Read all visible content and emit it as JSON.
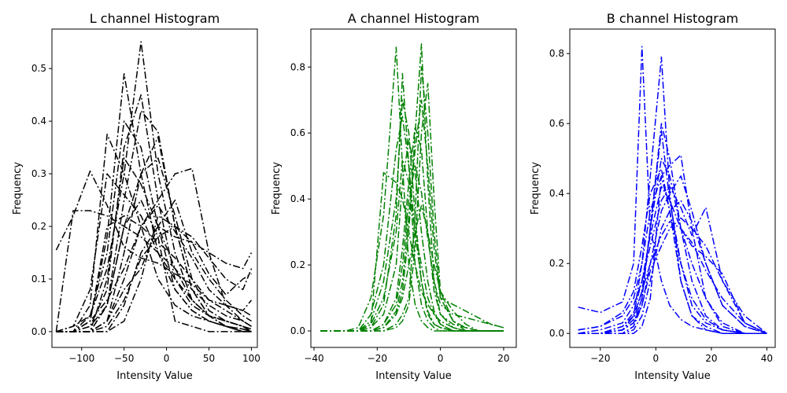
{
  "chart_data": [
    {
      "type": "line",
      "title": "L channel Histogram",
      "xlabel": "Intensity Value",
      "ylabel": "Frequency",
      "xlim": [
        -135,
        107
      ],
      "ylim": [
        -0.03,
        0.575
      ],
      "xticks": [
        -100,
        -50,
        0,
        50,
        100
      ],
      "yticks": [
        0.0,
        0.1,
        0.2,
        0.3,
        0.4,
        0.5
      ],
      "xtick_labels": [
        "−100",
        "−50",
        "0",
        "50",
        "100"
      ],
      "ytick_labels": [
        "0.0",
        "0.1",
        "0.2",
        "0.3",
        "0.4",
        "0.5"
      ],
      "color": "#000000",
      "line_style": "dash-dot",
      "x": [
        -130,
        -110,
        -90,
        -70,
        -50,
        -30,
        -10,
        10,
        30,
        50,
        70,
        90,
        100
      ],
      "series": [
        {
          "values": [
            0.155,
            0.22,
            0.305,
            0.24,
            0.16,
            0.14,
            0.13,
            0.11,
            0.09,
            0.06,
            0.05,
            0.04,
            0.03
          ]
        },
        {
          "values": [
            0.0,
            0.01,
            0.03,
            0.12,
            0.3,
            0.551,
            0.3,
            0.15,
            0.06,
            0.03,
            0.02,
            0.01,
            0.005
          ]
        },
        {
          "values": [
            0.0,
            0.0,
            0.02,
            0.18,
            0.49,
            0.3,
            0.15,
            0.08,
            0.04,
            0.02,
            0.01,
            0.005,
            0.0
          ]
        },
        {
          "values": [
            0.0,
            0.0,
            0.0,
            0.05,
            0.2,
            0.3,
            0.37,
            0.2,
            0.08,
            0.03,
            0.01,
            0.005,
            0.0
          ]
        },
        {
          "values": [
            0.0,
            0.0,
            0.05,
            0.375,
            0.3,
            0.2,
            0.1,
            0.05,
            0.03,
            0.02,
            0.01,
            0.0,
            0.0
          ]
        },
        {
          "values": [
            0.0,
            0.0,
            0.0,
            0.02,
            0.1,
            0.2,
            0.25,
            0.3,
            0.31,
            0.15,
            0.05,
            0.02,
            0.01
          ]
        },
        {
          "values": [
            0.0,
            0.0,
            0.0,
            0.0,
            0.05,
            0.15,
            0.2,
            0.18,
            0.17,
            0.15,
            0.13,
            0.12,
            0.15
          ]
        },
        {
          "values": [
            0.0,
            0.0,
            0.01,
            0.08,
            0.35,
            0.45,
            0.25,
            0.1,
            0.05,
            0.03,
            0.02,
            0.01,
            0.0
          ]
        },
        {
          "values": [
            0.0,
            0.0,
            0.0,
            0.05,
            0.25,
            0.42,
            0.38,
            0.2,
            0.08,
            0.03,
            0.01,
            0.0,
            0.0
          ]
        },
        {
          "values": [
            0.0,
            0.01,
            0.08,
            0.3,
            0.26,
            0.22,
            0.15,
            0.1,
            0.06,
            0.03,
            0.02,
            0.01,
            0.0
          ]
        },
        {
          "values": [
            0.0,
            0.0,
            0.0,
            0.02,
            0.08,
            0.12,
            0.2,
            0.25,
            0.15,
            0.1,
            0.06,
            0.03,
            0.02
          ]
        },
        {
          "values": [
            0.0,
            0.0,
            0.03,
            0.15,
            0.4,
            0.35,
            0.2,
            0.08,
            0.04,
            0.02,
            0.01,
            0.0,
            0.0
          ]
        },
        {
          "values": [
            0.0,
            0.0,
            0.0,
            0.0,
            0.02,
            0.1,
            0.22,
            0.2,
            0.18,
            0.14,
            0.1,
            0.08,
            0.12
          ]
        },
        {
          "values": [
            0.0,
            0.23,
            0.23,
            0.22,
            0.2,
            0.18,
            0.15,
            0.12,
            0.08,
            0.05,
            0.03,
            0.02,
            0.01
          ]
        },
        {
          "values": [
            0.0,
            0.0,
            0.0,
            0.1,
            0.33,
            0.28,
            0.2,
            0.12,
            0.06,
            0.03,
            0.02,
            0.01,
            0.0
          ]
        },
        {
          "values": [
            0.0,
            0.0,
            0.0,
            0.02,
            0.15,
            0.3,
            0.33,
            0.22,
            0.1,
            0.04,
            0.02,
            0.01,
            0.0
          ]
        },
        {
          "values": [
            0.0,
            0.0,
            0.02,
            0.06,
            0.12,
            0.2,
            0.24,
            0.19,
            0.14,
            0.08,
            0.05,
            0.04,
            0.06
          ]
        },
        {
          "values": [
            0.0,
            0.0,
            0.01,
            0.05,
            0.2,
            0.25,
            0.18,
            0.02,
            0.01,
            0.0,
            0.0,
            0.0,
            0.0
          ]
        },
        {
          "values": [
            0.0,
            0.0,
            0.0,
            0.01,
            0.06,
            0.14,
            0.18,
            0.2,
            0.17,
            0.11,
            0.07,
            0.1,
            0.11
          ]
        },
        {
          "values": [
            0.0,
            0.0,
            0.02,
            0.2,
            0.22,
            0.2,
            0.17,
            0.14,
            0.1,
            0.06,
            0.04,
            0.02,
            0.01
          ]
        }
      ]
    },
    {
      "type": "line",
      "title": "A channel Histogram",
      "xlabel": "Intensity Value",
      "ylabel": "Frequency",
      "xlim": [
        -41,
        24
      ],
      "ylim": [
        -0.05,
        0.915
      ],
      "xticks": [
        -40,
        -20,
        0,
        20
      ],
      "yticks": [
        0.0,
        0.2,
        0.4,
        0.6,
        0.8
      ],
      "xtick_labels": [
        "−40",
        "−20",
        "0",
        "20"
      ],
      "ytick_labels": [
        "0.0",
        "0.2",
        "0.4",
        "0.6",
        "0.8"
      ],
      "color": "#008000",
      "line_style": "dash-dot",
      "x": [
        -38,
        -34,
        -30,
        -26,
        -22,
        -18,
        -14,
        -12,
        -10,
        -8,
        -6,
        -4,
        -2,
        0,
        4,
        8,
        12,
        16,
        20
      ],
      "series": [
        {
          "values": [
            0.0,
            0.0,
            0.0,
            0.01,
            0.1,
            0.35,
            0.86,
            0.5,
            0.2,
            0.08,
            0.03,
            0.01,
            0.0,
            0.0,
            0.0,
            0.0,
            0.0,
            0.0,
            0.0
          ]
        },
        {
          "values": [
            0.0,
            0.0,
            0.0,
            0.0,
            0.0,
            0.01,
            0.05,
            0.12,
            0.3,
            0.6,
            0.87,
            0.45,
            0.15,
            0.05,
            0.01,
            0.0,
            0.0,
            0.0,
            0.0
          ]
        },
        {
          "values": [
            0.0,
            0.0,
            0.0,
            0.0,
            0.02,
            0.48,
            0.45,
            0.4,
            0.3,
            0.2,
            0.12,
            0.08,
            0.05,
            0.03,
            0.01,
            0.0,
            0.0,
            0.0,
            0.0
          ]
        },
        {
          "values": [
            0.0,
            0.0,
            0.0,
            0.0,
            0.0,
            0.02,
            0.1,
            0.25,
            0.45,
            0.62,
            0.55,
            0.3,
            0.12,
            0.05,
            0.02,
            0.01,
            0.0,
            0.0,
            0.0
          ]
        },
        {
          "values": [
            0.0,
            0.0,
            0.0,
            0.0,
            0.05,
            0.2,
            0.55,
            0.65,
            0.5,
            0.3,
            0.15,
            0.06,
            0.02,
            0.01,
            0.0,
            0.0,
            0.0,
            0.0,
            0.0
          ]
        },
        {
          "values": [
            0.0,
            0.0,
            0.0,
            0.0,
            0.0,
            0.0,
            0.02,
            0.05,
            0.1,
            0.35,
            0.8,
            0.6,
            0.3,
            0.1,
            0.03,
            0.01,
            0.0,
            0.0,
            0.0
          ]
        },
        {
          "values": [
            0.0,
            0.0,
            0.0,
            0.0,
            0.01,
            0.05,
            0.2,
            0.45,
            0.58,
            0.48,
            0.3,
            0.15,
            0.06,
            0.02,
            0.0,
            0.0,
            0.0,
            0.0,
            0.0
          ]
        },
        {
          "values": [
            0.0,
            0.0,
            0.0,
            0.0,
            0.0,
            0.01,
            0.06,
            0.15,
            0.35,
            0.55,
            0.7,
            0.5,
            0.25,
            0.1,
            0.08,
            0.06,
            0.04,
            0.02,
            0.01
          ]
        },
        {
          "values": [
            0.0,
            0.0,
            0.0,
            0.0,
            0.03,
            0.15,
            0.4,
            0.7,
            0.6,
            0.35,
            0.15,
            0.05,
            0.02,
            0.01,
            0.0,
            0.0,
            0.0,
            0.0,
            0.0
          ]
        },
        {
          "values": [
            0.0,
            0.0,
            0.0,
            0.0,
            0.0,
            0.02,
            0.08,
            0.2,
            0.4,
            0.5,
            0.42,
            0.28,
            0.15,
            0.08,
            0.05,
            0.04,
            0.03,
            0.02,
            0.01
          ]
        },
        {
          "values": [
            0.0,
            0.0,
            0.0,
            0.0,
            0.02,
            0.1,
            0.3,
            0.52,
            0.45,
            0.3,
            0.2,
            0.1,
            0.05,
            0.02,
            0.0,
            0.0,
            0.0,
            0.0,
            0.0
          ]
        },
        {
          "values": [
            0.0,
            0.0,
            0.0,
            0.0,
            0.0,
            0.0,
            0.01,
            0.03,
            0.08,
            0.25,
            0.6,
            0.75,
            0.4,
            0.12,
            0.03,
            0.0,
            0.0,
            0.0,
            0.0
          ]
        },
        {
          "values": [
            0.0,
            0.0,
            0.0,
            0.0,
            0.01,
            0.08,
            0.35,
            0.78,
            0.5,
            0.2,
            0.08,
            0.03,
            0.01,
            0.0,
            0.0,
            0.0,
            0.0,
            0.0,
            0.0
          ]
        },
        {
          "values": [
            0.0,
            0.0,
            0.0,
            0.0,
            0.0,
            0.01,
            0.05,
            0.1,
            0.2,
            0.3,
            0.38,
            0.3,
            0.2,
            0.12,
            0.06,
            0.02,
            0.0,
            0.0,
            0.0
          ]
        }
      ]
    },
    {
      "type": "line",
      "title": "B channel Histogram",
      "xlabel": "Intensity Value",
      "ylabel": "Frequency",
      "xlim": [
        -31,
        43
      ],
      "ylim": [
        -0.04,
        0.87
      ],
      "xticks": [
        -20,
        0,
        20,
        40
      ],
      "yticks": [
        0.0,
        0.2,
        0.4,
        0.6,
        0.8
      ],
      "xtick_labels": [
        "−20",
        "0",
        "20",
        "40"
      ],
      "ytick_labels": [
        "0.0",
        "0.2",
        "0.4",
        "0.6",
        "0.8"
      ],
      "color": "#0000ff",
      "line_style": "dash-dot",
      "x": [
        -28,
        -20,
        -12,
        -8,
        -5,
        -2,
        2,
        5,
        9,
        13,
        18,
        24,
        32,
        40
      ],
      "series": [
        {
          "values": [
            0.075,
            0.06,
            0.09,
            0.2,
            0.82,
            0.3,
            0.15,
            0.08,
            0.04,
            0.02,
            0.01,
            0.0,
            0.0,
            0.0
          ]
        },
        {
          "values": [
            0.0,
            0.0,
            0.01,
            0.05,
            0.2,
            0.45,
            0.79,
            0.4,
            0.15,
            0.05,
            0.01,
            0.0,
            0.0,
            0.0
          ]
        },
        {
          "values": [
            0.01,
            0.02,
            0.05,
            0.1,
            0.2,
            0.35,
            0.45,
            0.48,
            0.51,
            0.3,
            0.1,
            0.02,
            0.0,
            0.0
          ]
        },
        {
          "values": [
            0.0,
            0.0,
            0.01,
            0.03,
            0.1,
            0.3,
            0.6,
            0.5,
            0.3,
            0.15,
            0.05,
            0.01,
            0.0,
            0.0
          ]
        },
        {
          "values": [
            0.0,
            0.0,
            0.0,
            0.02,
            0.08,
            0.2,
            0.35,
            0.4,
            0.45,
            0.35,
            0.2,
            0.08,
            0.02,
            0.0
          ]
        },
        {
          "values": [
            0.0,
            0.01,
            0.03,
            0.08,
            0.15,
            0.25,
            0.38,
            0.42,
            0.36,
            0.28,
            0.36,
            0.15,
            0.03,
            0.0
          ]
        },
        {
          "values": [
            0.0,
            0.0,
            0.01,
            0.04,
            0.12,
            0.3,
            0.5,
            0.45,
            0.3,
            0.2,
            0.1,
            0.03,
            0.0,
            0.0
          ]
        },
        {
          "values": [
            0.0,
            0.0,
            0.02,
            0.06,
            0.15,
            0.28,
            0.42,
            0.38,
            0.3,
            0.25,
            0.22,
            0.17,
            0.03,
            0.0
          ]
        },
        {
          "values": [
            0.0,
            0.0,
            0.0,
            0.01,
            0.05,
            0.15,
            0.3,
            0.35,
            0.38,
            0.32,
            0.2,
            0.08,
            0.02,
            0.0
          ]
        },
        {
          "values": [
            0.01,
            0.02,
            0.06,
            0.12,
            0.25,
            0.4,
            0.47,
            0.35,
            0.2,
            0.1,
            0.04,
            0.01,
            0.0,
            0.0
          ]
        },
        {
          "values": [
            0.0,
            0.0,
            0.0,
            0.02,
            0.1,
            0.3,
            0.58,
            0.38,
            0.2,
            0.08,
            0.03,
            0.01,
            0.0,
            0.0
          ]
        },
        {
          "values": [
            0.0,
            0.0,
            0.01,
            0.03,
            0.08,
            0.18,
            0.25,
            0.3,
            0.33,
            0.3,
            0.25,
            0.15,
            0.05,
            0.0
          ]
        },
        {
          "values": [
            0.0,
            0.0,
            0.0,
            0.0,
            0.02,
            0.1,
            0.45,
            0.35,
            0.15,
            0.05,
            0.02,
            0.0,
            0.0,
            0.0
          ]
        },
        {
          "values": [
            0.0,
            0.0,
            0.02,
            0.05,
            0.12,
            0.2,
            0.28,
            0.32,
            0.3,
            0.26,
            0.18,
            0.1,
            0.03,
            0.0
          ]
        }
      ]
    }
  ]
}
